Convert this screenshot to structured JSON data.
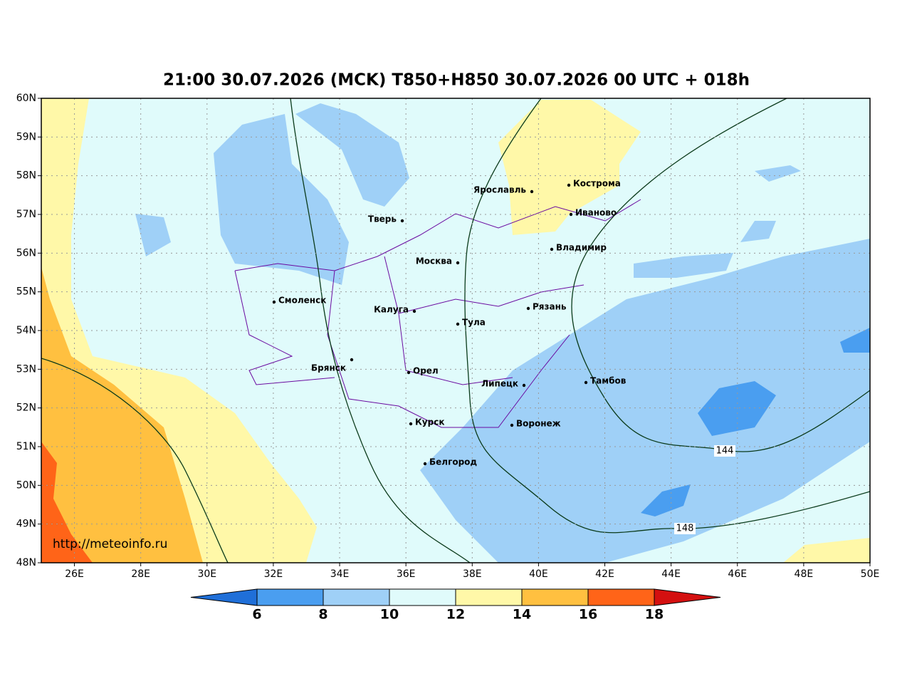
{
  "title": "21:00 30.07.2026 (MCK) T850+H850 30.07.2026 00 UTC + 018h",
  "map": {
    "xlim": [
      25,
      50
    ],
    "ylim": [
      48,
      60
    ],
    "xticks": [
      {
        "value": 26,
        "label": "26E"
      },
      {
        "value": 28,
        "label": "28E"
      },
      {
        "value": 30,
        "label": "30E"
      },
      {
        "value": 32,
        "label": "32E"
      },
      {
        "value": 34,
        "label": "34E"
      },
      {
        "value": 36,
        "label": "36E"
      },
      {
        "value": 38,
        "label": "38E"
      },
      {
        "value": 40,
        "label": "40E"
      },
      {
        "value": 42,
        "label": "42E"
      },
      {
        "value": 44,
        "label": "44E"
      },
      {
        "value": 46,
        "label": "46E"
      },
      {
        "value": 48,
        "label": "48E"
      },
      {
        "value": 50,
        "label": "50E"
      }
    ],
    "yticks": [
      {
        "value": 48,
        "label": "48N"
      },
      {
        "value": 49,
        "label": "49N"
      },
      {
        "value": 50,
        "label": "50N"
      },
      {
        "value": 51,
        "label": "51N"
      },
      {
        "value": 52,
        "label": "52N"
      },
      {
        "value": 53,
        "label": "53N"
      },
      {
        "value": 54,
        "label": "54N"
      },
      {
        "value": 55,
        "label": "55N"
      },
      {
        "value": 56,
        "label": "56N"
      },
      {
        "value": 57,
        "label": "57N"
      },
      {
        "value": 58,
        "label": "58N"
      },
      {
        "value": 59,
        "label": "59N"
      },
      {
        "value": 60,
        "label": "60N"
      }
    ],
    "grid": true,
    "cities": [
      "Ярославль",
      "Кострома",
      "Иваново",
      "Тверь",
      "Владимир",
      "Москва",
      "Смоленск",
      "Калуга",
      "Рязань",
      "Тула",
      "Брянск",
      "Орел",
      "Липецк",
      "Тамбов",
      "Курск",
      "Воронеж",
      "Белгород"
    ],
    "contour_labels": [
      144,
      148
    ],
    "source": "http://meteoinfo.ru"
  },
  "colorbar": {
    "levels": [
      6,
      8,
      10,
      12,
      14,
      16,
      18
    ],
    "colors": [
      "#1f6fd8",
      "#4a9ef0",
      "#9fd0f7",
      "#e0fbfb",
      "#fff8a8",
      "#ffc040",
      "#ff6418",
      "#d41010"
    ]
  }
}
